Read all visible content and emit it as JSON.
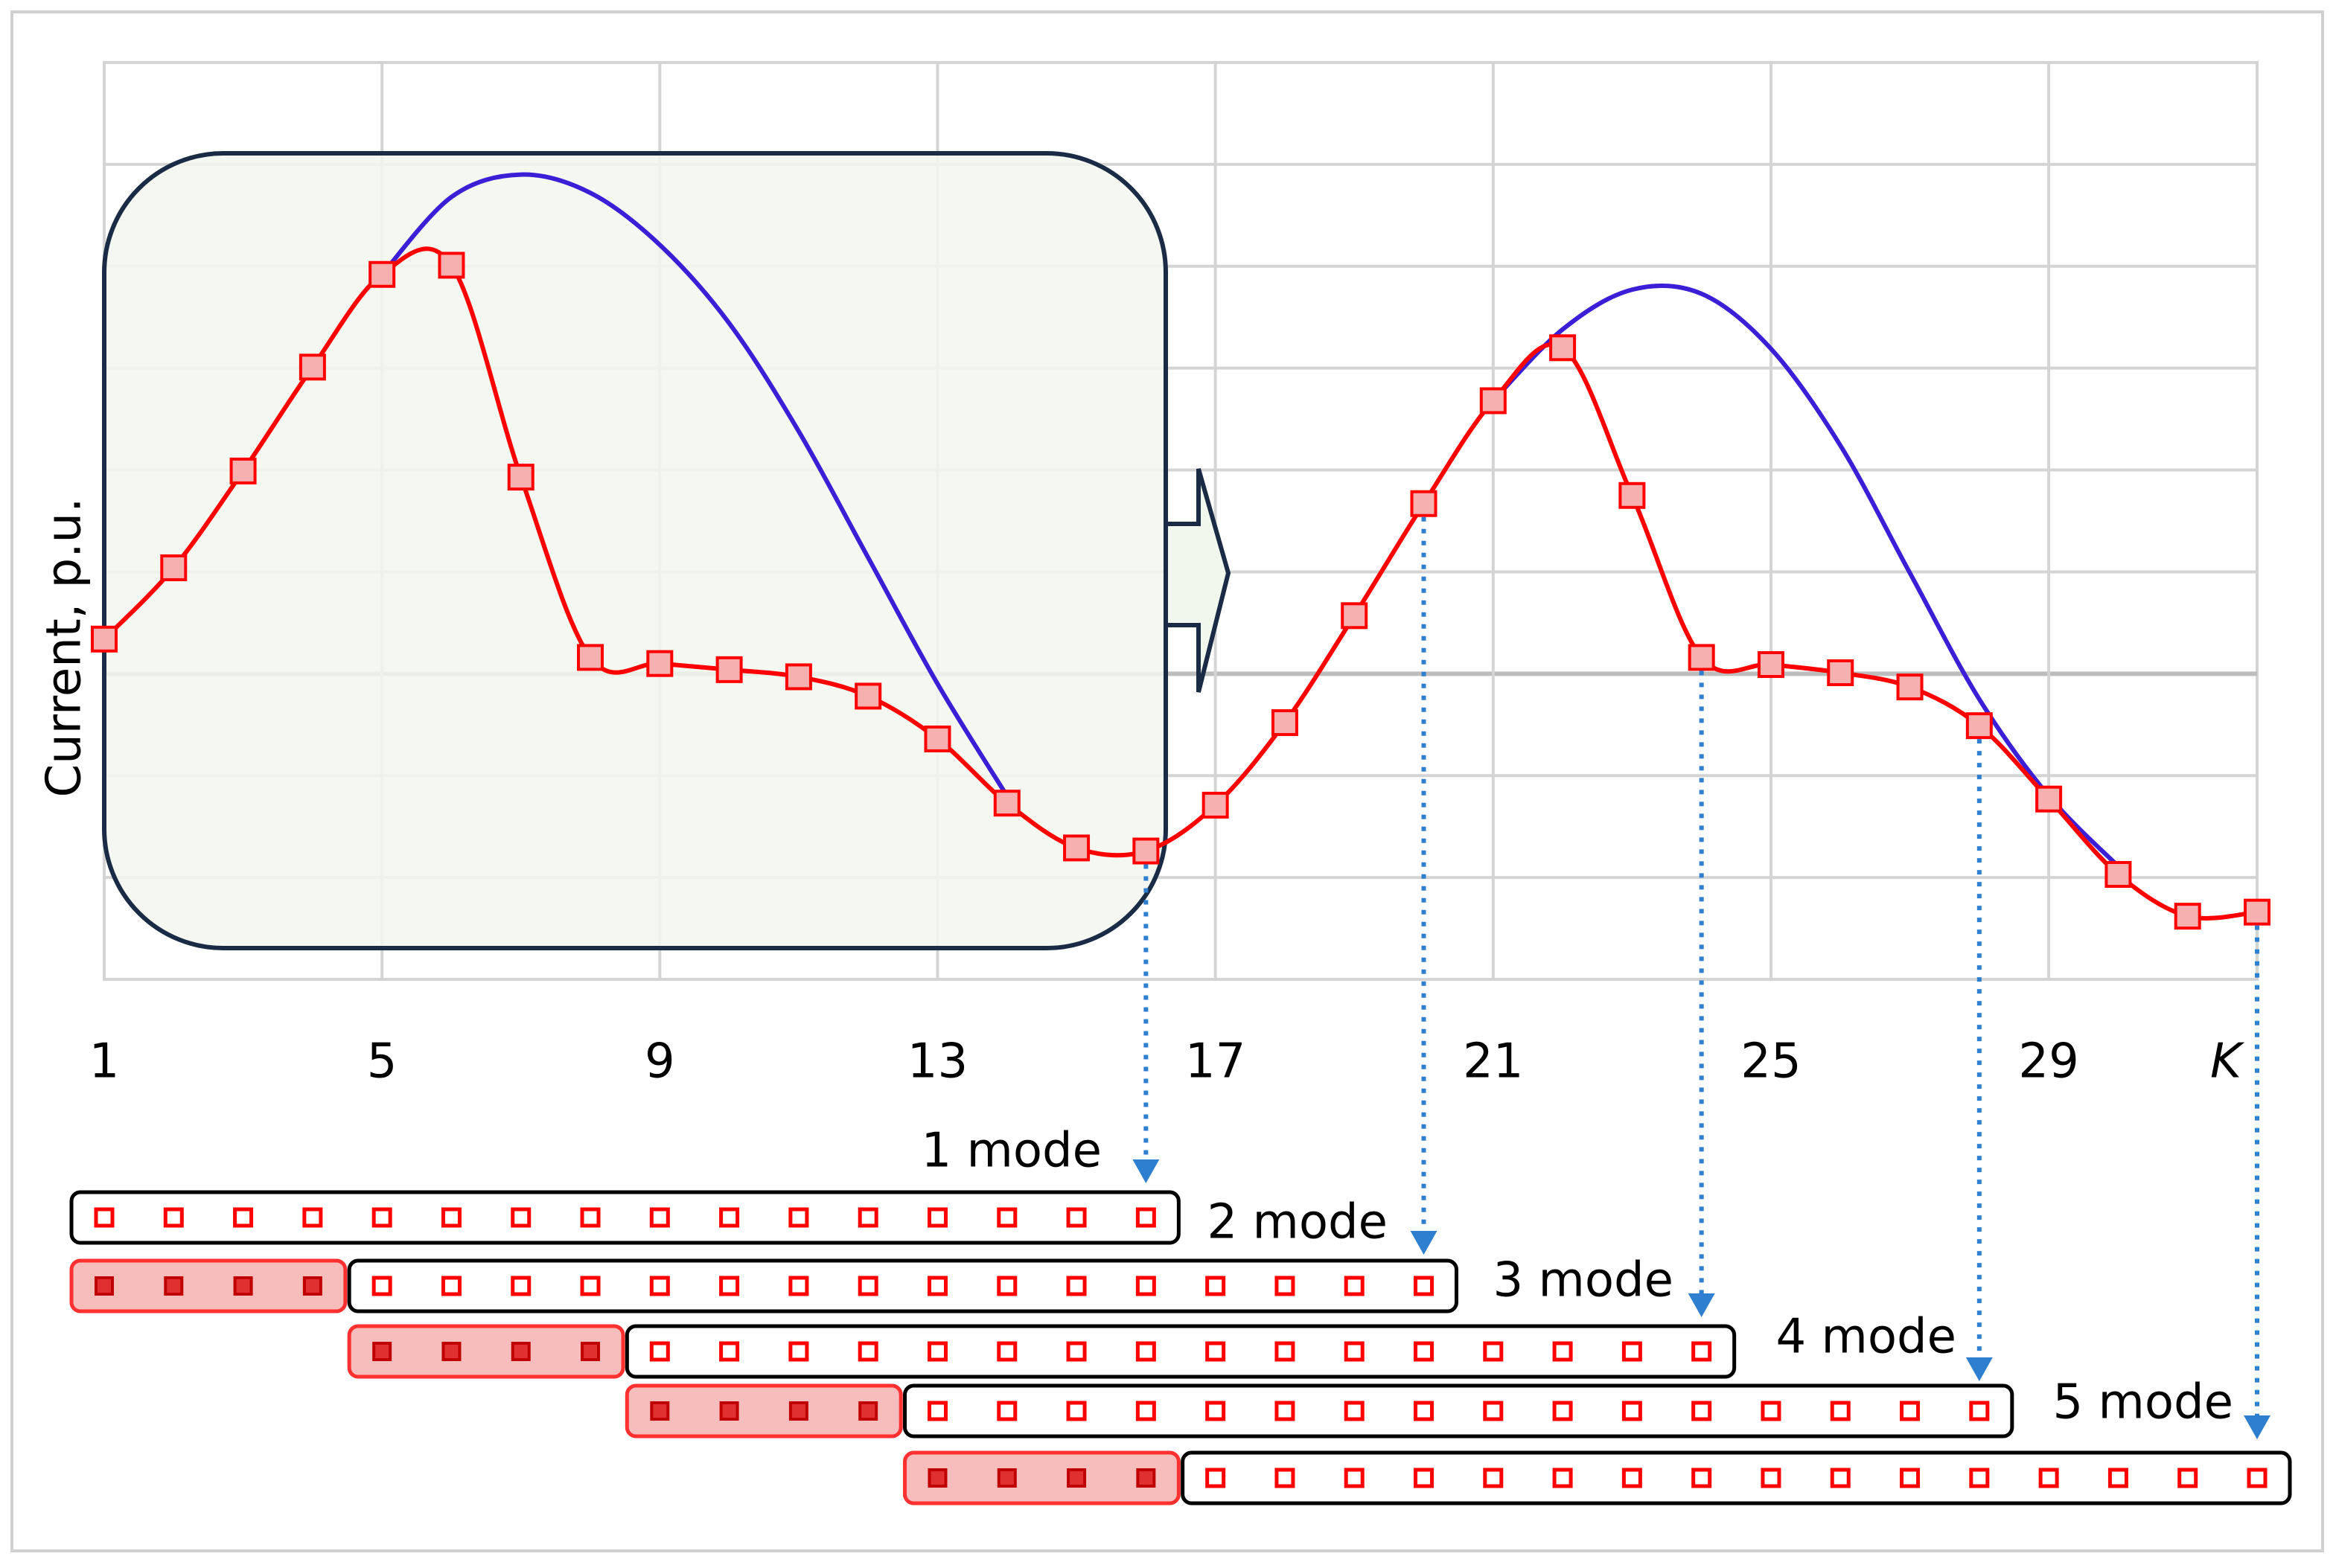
{
  "chart_data": {
    "type": "line",
    "y_label": "Current, p.u.",
    "x_label": "K",
    "x": [
      1,
      2,
      3,
      4,
      5,
      6,
      7,
      8,
      9,
      10,
      11,
      12,
      13,
      14,
      15,
      16,
      17,
      18,
      19,
      20,
      21,
      22,
      23,
      24,
      25,
      26,
      27,
      28,
      29,
      30,
      31,
      32
    ],
    "xlim": [
      1,
      32
    ],
    "xticks": [
      1,
      5,
      9,
      13,
      17,
      21,
      25,
      29
    ],
    "ylim": [
      -3,
      6
    ],
    "yticks": [
      -3,
      -2,
      -1,
      0,
      1,
      2,
      3,
      4,
      5,
      6
    ],
    "grid": true,
    "series": [
      {
        "color": "#ff0000",
        "values": [
          0.34,
          1.04,
          1.99,
          3.01,
          3.92,
          4.01,
          1.93,
          0.16,
          0.1,
          0.04,
          -0.03,
          -0.22,
          -0.64,
          -1.27,
          -1.71,
          -1.74,
          -1.29,
          -0.48,
          0.57,
          1.67,
          2.68,
          3.2,
          1.75,
          0.16,
          0.09,
          0.01,
          -0.13,
          -0.51,
          -1.23,
          -1.97,
          -2.38,
          -2.34
        ]
      },
      {
        "color": "#3b1fd6",
        "values": [
          null,
          null,
          null,
          null,
          3.92,
          4.68,
          4.9,
          4.72,
          4.21,
          3.44,
          2.38,
          1.14,
          -0.1,
          -1.2,
          null,
          null,
          null,
          null,
          null,
          null,
          2.68,
          3.38,
          3.77,
          3.73,
          3.19,
          2.24,
          0.99,
          -0.25,
          -1.2,
          -1.89,
          null,
          null
        ]
      }
    ],
    "annotations": [
      "1 mode",
      "2 mode",
      "3 mode",
      "4 mode",
      "5 mode"
    ]
  }
}
